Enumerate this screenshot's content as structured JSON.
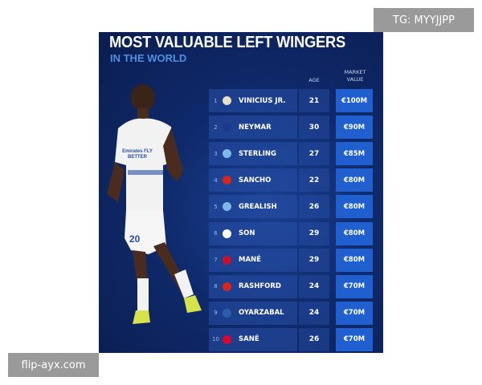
{
  "watermarks": {
    "top_right": "TG: MYYJJPP",
    "bottom_left": "flip-ayx.com"
  },
  "infographic": {
    "title": "MOST VALUABLE LEFT WINGERS",
    "subtitle": "IN THE WORLD",
    "headers": {
      "age": "AGE",
      "market_value": "MARKET VALUE"
    },
    "shirt": {
      "sponsor": "Emirates FLY BETTER",
      "number": "20"
    },
    "rows": [
      {
        "rank": "1",
        "club_icon": "real-madrid-crest",
        "name": "VINICIUS JR.",
        "age": "21",
        "value": "€100M"
      },
      {
        "rank": "2",
        "club_icon": "psg-crest",
        "name": "NEYMAR",
        "age": "30",
        "value": "€90M"
      },
      {
        "rank": "3",
        "club_icon": "man-city-crest",
        "name": "STERLING",
        "age": "27",
        "value": "€85M"
      },
      {
        "rank": "4",
        "club_icon": "man-united-crest",
        "name": "SANCHO",
        "age": "22",
        "value": "€80M"
      },
      {
        "rank": "5",
        "club_icon": "man-city-crest",
        "name": "GREALISH",
        "age": "26",
        "value": "€80M"
      },
      {
        "rank": "6",
        "club_icon": "tottenham-crest",
        "name": "SON",
        "age": "29",
        "value": "€80M"
      },
      {
        "rank": "7",
        "club_icon": "liverpool-crest",
        "name": "MANÉ",
        "age": "29",
        "value": "€80M"
      },
      {
        "rank": "8",
        "club_icon": "man-united-crest",
        "name": "RASHFORD",
        "age": "24",
        "value": "€70M"
      },
      {
        "rank": "9",
        "club_icon": "real-sociedad-crest",
        "name": "OYARZABAL",
        "age": "24",
        "value": "€70M"
      },
      {
        "rank": "10",
        "club_icon": "bayern-crest",
        "name": "SANÉ",
        "age": "26",
        "value": "€70M"
      }
    ]
  },
  "colors": {
    "background": "#0f2a6b",
    "accent": "#4f8fe6",
    "value_cell": "#1f5fd0"
  }
}
